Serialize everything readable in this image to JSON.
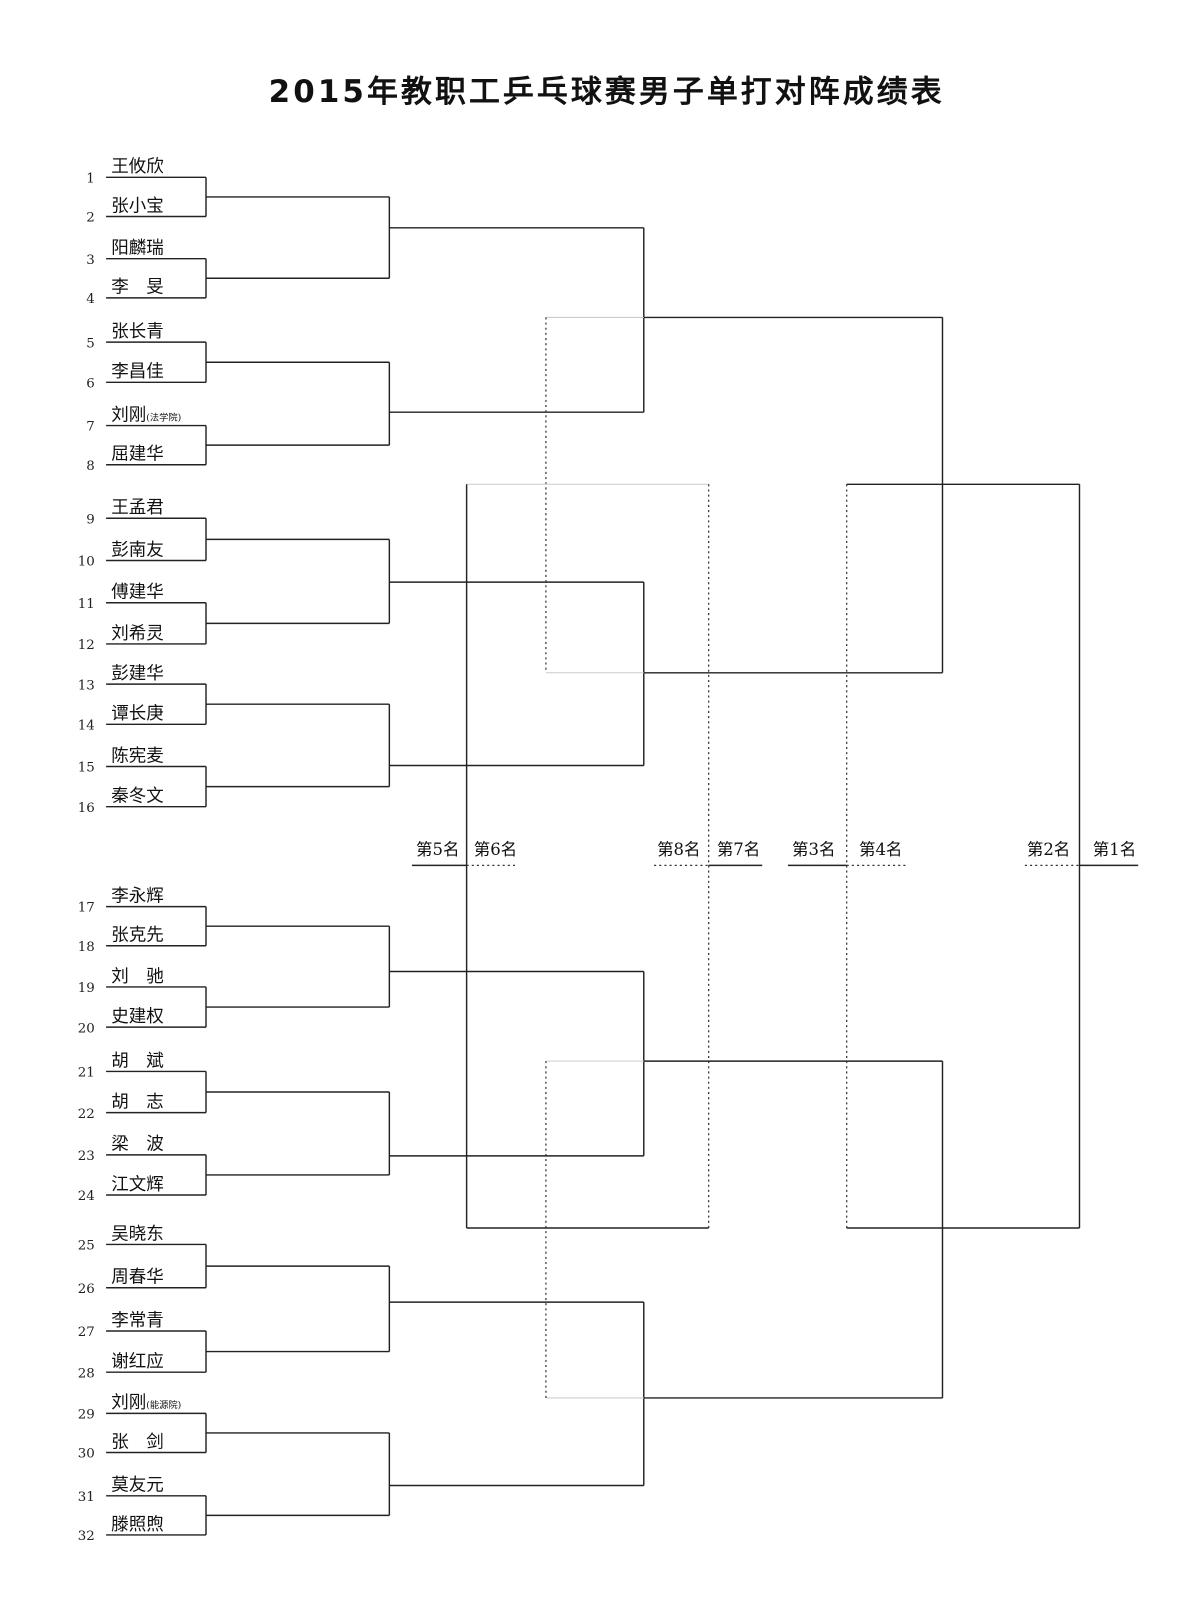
{
  "title": "2015年教职工乒乓球赛男子单打对阵成绩表",
  "entrants": [
    {
      "seed": "1",
      "name": "王攸欣"
    },
    {
      "seed": "2",
      "name": "张小宝"
    },
    {
      "seed": "3",
      "name": "阳麟瑞"
    },
    {
      "seed": "4",
      "name": "李　旻"
    },
    {
      "seed": "5",
      "name": "张长青"
    },
    {
      "seed": "6",
      "name": "李昌佳"
    },
    {
      "seed": "7",
      "name": "刘刚",
      "note": "(法学院)"
    },
    {
      "seed": "8",
      "name": "屈建华"
    },
    {
      "seed": "9",
      "name": "王孟君"
    },
    {
      "seed": "10",
      "name": "彭南友"
    },
    {
      "seed": "11",
      "name": "傅建华"
    },
    {
      "seed": "12",
      "name": "刘希灵"
    },
    {
      "seed": "13",
      "name": "彭建华"
    },
    {
      "seed": "14",
      "name": "谭长庚"
    },
    {
      "seed": "15",
      "name": "陈宪麦"
    },
    {
      "seed": "16",
      "name": "秦冬文"
    },
    {
      "seed": "17",
      "name": "李永辉"
    },
    {
      "seed": "18",
      "name": "张克先"
    },
    {
      "seed": "19",
      "name": "刘　驰"
    },
    {
      "seed": "20",
      "name": "史建权"
    },
    {
      "seed": "21",
      "name": "胡　斌"
    },
    {
      "seed": "22",
      "name": "胡　志"
    },
    {
      "seed": "23",
      "name": "梁　波"
    },
    {
      "seed": "24",
      "name": "江文辉"
    },
    {
      "seed": "25",
      "name": "吴晓东"
    },
    {
      "seed": "26",
      "name": "周春华"
    },
    {
      "seed": "27",
      "name": "李常青"
    },
    {
      "seed": "28",
      "name": "谢红应"
    },
    {
      "seed": "29",
      "name": "刘刚",
      "note": "(能源院)"
    },
    {
      "seed": "30",
      "name": "张　剑"
    },
    {
      "seed": "31",
      "name": "莫友元"
    },
    {
      "seed": "32",
      "name": "滕照煦"
    }
  ],
  "places": [
    "第5名",
    "第6名",
    "第8名",
    "第7名",
    "第3名",
    "第4名",
    "第2名",
    "第1名"
  ]
}
